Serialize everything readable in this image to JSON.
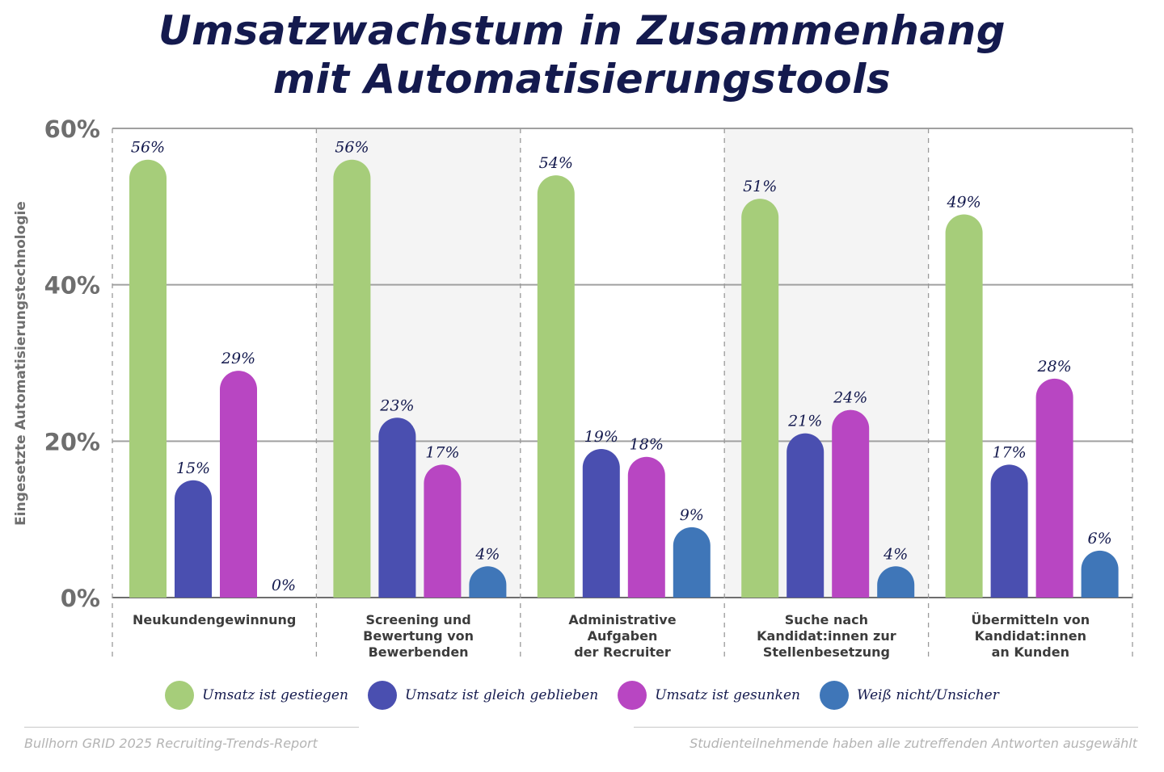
{
  "title": {
    "line1": "Umsatzwachstum  in Zusammenhang",
    "line2": "mit Automatisierungstools"
  },
  "footer": {
    "source": "Bullhorn GRID 2025 Recruiting-Trends-Report",
    "note": "Studienteilnehmende haben alle zutreffenden Antworten ausgewählt"
  },
  "legend": [
    {
      "label": "Umsatz ist gestiegen",
      "color": "#a6cd7a"
    },
    {
      "label": "Umsatz ist gleich geblieben",
      "color": "#4a4fb0"
    },
    {
      "label": "Umsatz ist gesunken",
      "color": "#b846c2"
    },
    {
      "label": "Weiß nicht/Unsicher",
      "color": "#3f76b8"
    }
  ],
  "chart_data": {
    "type": "bar",
    "title": "Umsatzwachstum  in Zusammenhang mit Automatisierungstools",
    "ylabel": "Eingesetzte Automatisierungstechnologie",
    "xlabel": "",
    "ylim": [
      0,
      60
    ],
    "yticks": [
      "0%",
      "20%",
      "40%",
      "60%"
    ],
    "ytick_values": [
      0,
      20,
      40,
      60
    ],
    "grid": true,
    "categories": [
      [
        "Neukundengewinnung"
      ],
      [
        "Screening und",
        "Bewertung von",
        "Bewerbenden"
      ],
      [
        "Administrative",
        "Aufgaben",
        "der Recruiter"
      ],
      [
        "Suche nach",
        "Kandidat:innen zur",
        "Stellenbesetzung"
      ],
      [
        "Übermitteln von",
        "Kandidat:innen",
        "an Kunden"
      ]
    ],
    "series": [
      {
        "name": "Umsatz ist gestiegen",
        "color": "#a6cd7a",
        "values": [
          56,
          56,
          54,
          51,
          49
        ],
        "labels": [
          "56%",
          "56%",
          "54%",
          "51%",
          "49%"
        ]
      },
      {
        "name": "Umsatz ist gleich geblieben",
        "color": "#4a4fb0",
        "values": [
          15,
          23,
          19,
          21,
          17
        ],
        "labels": [
          "15%",
          "23%",
          "19%",
          "21%",
          "17%"
        ]
      },
      {
        "name": "Umsatz ist gesunken",
        "color": "#b846c2",
        "values": [
          29,
          17,
          18,
          24,
          28
        ],
        "labels": [
          "29%",
          "17%",
          "18%",
          "24%",
          "28%"
        ]
      },
      {
        "name": "Weiß nicht/Unsicher",
        "color": "#3f76b8",
        "values": [
          0,
          4,
          9,
          4,
          6
        ],
        "labels": [
          "0%",
          "4%",
          "9%",
          "4%",
          "6%"
        ]
      }
    ],
    "shaded_groups": [
      1,
      3
    ],
    "shade_color": "#f4f4f4"
  }
}
